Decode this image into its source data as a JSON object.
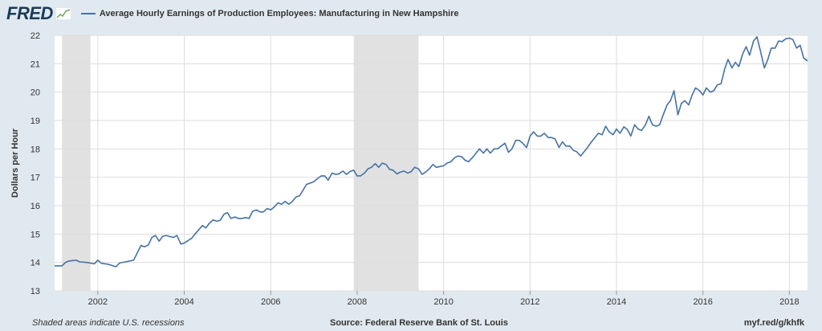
{
  "header": {
    "logo_text": "FRED",
    "title": "Average Hourly Earnings of Production Employees: Manufacturing in New Hampshire"
  },
  "footer": {
    "recession_note": "Shaded areas indicate U.S. recessions",
    "source": "Source: Federal Reserve Bank of St. Louis",
    "url": "myf.red/g/khfk"
  },
  "colors": {
    "line": "#4572a7",
    "recession": "#e1e1e1",
    "grid": "#dddddd",
    "background": "#e1e9f0",
    "plot_background": "#ffffff"
  },
  "chart_data": {
    "type": "line",
    "title": "Average Hourly Earnings of Production Employees: Manufacturing in New Hampshire",
    "ylabel": "Dollars per Hour",
    "xlabel": "",
    "xlim": [
      2001.0,
      2018.42
    ],
    "ylim": [
      13,
      22
    ],
    "yticks": [
      13,
      14,
      15,
      16,
      17,
      18,
      19,
      20,
      21,
      22
    ],
    "xticks": [
      2002,
      2004,
      2006,
      2008,
      2010,
      2012,
      2014,
      2016,
      2018
    ],
    "grid": true,
    "legend": "top-left",
    "recessions": [
      [
        2001.17,
        2001.83
      ],
      [
        2007.92,
        2009.42
      ]
    ],
    "series": [
      {
        "name": "Average Hourly Earnings of Production Employees: Manufacturing in New Hampshire",
        "points": [
          [
            2001.0,
            13.88
          ],
          [
            2001.17,
            13.88
          ],
          [
            2001.25,
            14.0
          ],
          [
            2001.33,
            14.05
          ],
          [
            2001.5,
            14.08
          ],
          [
            2001.58,
            14.02
          ],
          [
            2001.75,
            14.0
          ],
          [
            2001.92,
            13.95
          ],
          [
            2002.0,
            14.08
          ],
          [
            2002.08,
            13.97
          ],
          [
            2002.25,
            13.93
          ],
          [
            2002.42,
            13.85
          ],
          [
            2002.5,
            13.98
          ],
          [
            2002.67,
            14.03
          ],
          [
            2002.83,
            14.08
          ],
          [
            2003.0,
            14.6
          ],
          [
            2003.08,
            14.55
          ],
          [
            2003.17,
            14.62
          ],
          [
            2003.25,
            14.88
          ],
          [
            2003.33,
            14.95
          ],
          [
            2003.42,
            14.75
          ],
          [
            2003.5,
            14.92
          ],
          [
            2003.58,
            14.95
          ],
          [
            2003.75,
            14.88
          ],
          [
            2003.83,
            14.95
          ],
          [
            2003.92,
            14.65
          ],
          [
            2004.0,
            14.68
          ],
          [
            2004.17,
            14.85
          ],
          [
            2004.25,
            15.0
          ],
          [
            2004.42,
            15.3
          ],
          [
            2004.5,
            15.22
          ],
          [
            2004.58,
            15.38
          ],
          [
            2004.67,
            15.5
          ],
          [
            2004.75,
            15.45
          ],
          [
            2004.83,
            15.48
          ],
          [
            2004.92,
            15.7
          ],
          [
            2005.0,
            15.75
          ],
          [
            2005.08,
            15.55
          ],
          [
            2005.17,
            15.6
          ],
          [
            2005.25,
            15.55
          ],
          [
            2005.33,
            15.55
          ],
          [
            2005.42,
            15.58
          ],
          [
            2005.5,
            15.55
          ],
          [
            2005.58,
            15.8
          ],
          [
            2005.67,
            15.85
          ],
          [
            2005.75,
            15.78
          ],
          [
            2005.83,
            15.78
          ],
          [
            2005.92,
            15.9
          ],
          [
            2006.0,
            15.85
          ],
          [
            2006.08,
            15.95
          ],
          [
            2006.17,
            16.1
          ],
          [
            2006.25,
            16.05
          ],
          [
            2006.33,
            16.15
          ],
          [
            2006.42,
            16.05
          ],
          [
            2006.5,
            16.15
          ],
          [
            2006.58,
            16.3
          ],
          [
            2006.67,
            16.35
          ],
          [
            2006.75,
            16.55
          ],
          [
            2006.83,
            16.75
          ],
          [
            2006.92,
            16.8
          ],
          [
            2007.0,
            16.85
          ],
          [
            2007.08,
            16.95
          ],
          [
            2007.17,
            17.05
          ],
          [
            2007.25,
            17.05
          ],
          [
            2007.33,
            16.9
          ],
          [
            2007.42,
            17.15
          ],
          [
            2007.5,
            17.1
          ],
          [
            2007.58,
            17.12
          ],
          [
            2007.67,
            17.22
          ],
          [
            2007.75,
            17.1
          ],
          [
            2007.83,
            17.2
          ],
          [
            2007.92,
            17.25
          ],
          [
            2008.0,
            17.05
          ],
          [
            2008.08,
            17.05
          ],
          [
            2008.17,
            17.15
          ],
          [
            2008.25,
            17.3
          ],
          [
            2008.33,
            17.35
          ],
          [
            2008.42,
            17.48
          ],
          [
            2008.5,
            17.35
          ],
          [
            2008.58,
            17.5
          ],
          [
            2008.67,
            17.45
          ],
          [
            2008.75,
            17.28
          ],
          [
            2008.83,
            17.25
          ],
          [
            2008.92,
            17.12
          ],
          [
            2009.0,
            17.18
          ],
          [
            2009.08,
            17.22
          ],
          [
            2009.17,
            17.15
          ],
          [
            2009.25,
            17.2
          ],
          [
            2009.33,
            17.35
          ],
          [
            2009.42,
            17.3
          ],
          [
            2009.5,
            17.1
          ],
          [
            2009.58,
            17.18
          ],
          [
            2009.67,
            17.3
          ],
          [
            2009.75,
            17.45
          ],
          [
            2009.83,
            17.35
          ],
          [
            2009.92,
            17.38
          ],
          [
            2010.0,
            17.4
          ],
          [
            2010.08,
            17.5
          ],
          [
            2010.17,
            17.55
          ],
          [
            2010.25,
            17.68
          ],
          [
            2010.33,
            17.75
          ],
          [
            2010.42,
            17.72
          ],
          [
            2010.5,
            17.6
          ],
          [
            2010.58,
            17.55
          ],
          [
            2010.67,
            17.7
          ],
          [
            2010.75,
            17.85
          ],
          [
            2010.83,
            18.0
          ],
          [
            2010.92,
            17.85
          ],
          [
            2011.0,
            18.0
          ],
          [
            2011.08,
            17.85
          ],
          [
            2011.17,
            18.0
          ],
          [
            2011.25,
            18.0
          ],
          [
            2011.33,
            18.1
          ],
          [
            2011.42,
            18.2
          ],
          [
            2011.5,
            17.88
          ],
          [
            2011.58,
            18.0
          ],
          [
            2011.67,
            18.3
          ],
          [
            2011.75,
            18.3
          ],
          [
            2011.83,
            18.2
          ],
          [
            2011.92,
            18.05
          ],
          [
            2012.0,
            18.45
          ],
          [
            2012.08,
            18.6
          ],
          [
            2012.17,
            18.45
          ],
          [
            2012.25,
            18.45
          ],
          [
            2012.33,
            18.55
          ],
          [
            2012.42,
            18.4
          ],
          [
            2012.5,
            18.4
          ],
          [
            2012.58,
            18.35
          ],
          [
            2012.67,
            18.05
          ],
          [
            2012.75,
            18.25
          ],
          [
            2012.83,
            18.1
          ],
          [
            2012.92,
            18.1
          ],
          [
            2013.0,
            17.95
          ],
          [
            2013.08,
            17.9
          ],
          [
            2013.17,
            17.75
          ],
          [
            2013.25,
            17.9
          ],
          [
            2013.33,
            18.05
          ],
          [
            2013.42,
            18.25
          ],
          [
            2013.5,
            18.4
          ],
          [
            2013.58,
            18.55
          ],
          [
            2013.67,
            18.5
          ],
          [
            2013.75,
            18.8
          ],
          [
            2013.83,
            18.6
          ],
          [
            2013.92,
            18.5
          ],
          [
            2014.0,
            18.7
          ],
          [
            2014.08,
            18.55
          ],
          [
            2014.17,
            18.78
          ],
          [
            2014.25,
            18.68
          ],
          [
            2014.33,
            18.45
          ],
          [
            2014.42,
            18.85
          ],
          [
            2014.5,
            18.7
          ],
          [
            2014.58,
            18.65
          ],
          [
            2014.67,
            18.85
          ],
          [
            2014.75,
            19.15
          ],
          [
            2014.83,
            18.85
          ],
          [
            2014.92,
            18.8
          ],
          [
            2015.0,
            18.85
          ],
          [
            2015.08,
            19.2
          ],
          [
            2015.17,
            19.55
          ],
          [
            2015.25,
            19.7
          ],
          [
            2015.33,
            20.05
          ],
          [
            2015.42,
            19.2
          ],
          [
            2015.5,
            19.6
          ],
          [
            2015.58,
            19.7
          ],
          [
            2015.67,
            19.55
          ],
          [
            2015.75,
            19.9
          ],
          [
            2015.83,
            20.15
          ],
          [
            2015.92,
            20.05
          ],
          [
            2016.0,
            19.9
          ],
          [
            2016.08,
            20.15
          ],
          [
            2016.17,
            20.0
          ],
          [
            2016.25,
            20.05
          ],
          [
            2016.33,
            20.25
          ],
          [
            2016.42,
            20.3
          ],
          [
            2016.5,
            20.8
          ],
          [
            2016.58,
            21.15
          ],
          [
            2016.67,
            20.85
          ],
          [
            2016.75,
            21.05
          ],
          [
            2016.83,
            20.9
          ],
          [
            2016.92,
            21.35
          ],
          [
            2017.0,
            21.6
          ],
          [
            2017.08,
            21.3
          ],
          [
            2017.17,
            21.8
          ],
          [
            2017.25,
            21.95
          ],
          [
            2017.33,
            21.45
          ],
          [
            2017.42,
            20.85
          ],
          [
            2017.5,
            21.15
          ],
          [
            2017.58,
            21.55
          ],
          [
            2017.67,
            21.55
          ],
          [
            2017.75,
            21.8
          ],
          [
            2017.83,
            21.78
          ],
          [
            2017.92,
            21.88
          ],
          [
            2018.0,
            21.9
          ],
          [
            2018.08,
            21.85
          ],
          [
            2018.17,
            21.55
          ],
          [
            2018.25,
            21.65
          ],
          [
            2018.33,
            21.2
          ],
          [
            2018.42,
            21.1
          ]
        ]
      }
    ]
  }
}
